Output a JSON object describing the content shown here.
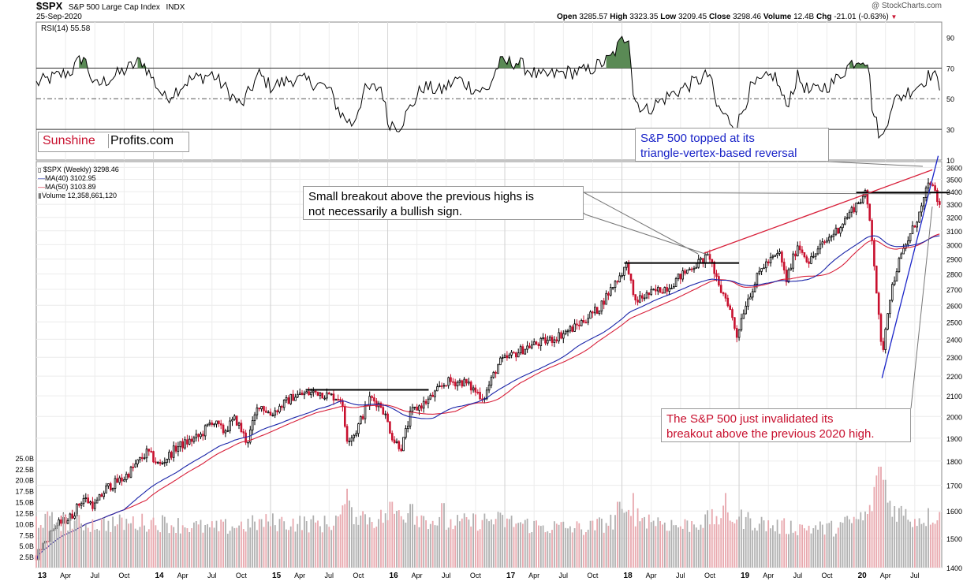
{
  "header": {
    "symbol": "$SPX",
    "index_name": "S&P 500 Large Cap Index",
    "exchange": "INDX",
    "date": "25-Sep-2020",
    "open_label": "Open",
    "open": "3285.57",
    "high_label": "High",
    "high": "3323.35",
    "low_label": "Low",
    "low": "3209.45",
    "close_label": "Close",
    "close": "3298.46",
    "volume_label": "Volume",
    "volume": "12.4B",
    "chg_label": "Chg",
    "chg": "-21.01 (-0.63%)",
    "credit": "@ StockCharts.com"
  },
  "logo": {
    "part1": "Sunshine",
    "part2": "Profits.com"
  },
  "legend": {
    "price": "$SPX (Weekly) 3298.46",
    "ma40": "MA(40) 3102.95",
    "ma50": "MA(50) 3103.89",
    "volume": "Volume 12,358,661,120"
  },
  "annotations": {
    "topped_line1": "S&P 500 topped at its",
    "topped_line2": "triangle-vertex-based reversal",
    "breakout_line1": "Small breakout above the previous highs is",
    "breakout_line2": "not necessarily a bullish sign.",
    "invalidated_line1": "The S&P 500 just invalidated its",
    "invalidated_line2": "breakout above the previous 2020 high."
  },
  "colors": {
    "up": "#000000",
    "down": "#c8102e",
    "ma40": "#1a24a8",
    "ma50": "#d8203a",
    "rsi_fill": "#5a8a55",
    "vol_up": "#b0b0b0",
    "vol_down": "#e8a8ae",
    "blue_text": "#1a24c8",
    "red_text": "#c8102e"
  },
  "chart_data": [
    {
      "type": "line",
      "title": "RSI(14) 55.58",
      "ylim": [
        10,
        100
      ],
      "y_ticks": [
        90,
        70,
        50,
        30,
        10
      ],
      "overbought": 70,
      "oversold": 30,
      "midline": 50,
      "x_start": 2013.0,
      "x_end": 2020.73,
      "points": [
        [
          2013.0,
          60
        ],
        [
          2013.3,
          68
        ],
        [
          2013.4,
          78
        ],
        [
          2013.5,
          58
        ],
        [
          2013.7,
          66
        ],
        [
          2013.9,
          75
        ],
        [
          2014.0,
          62
        ],
        [
          2014.1,
          50
        ],
        [
          2014.3,
          62
        ],
        [
          2014.5,
          66
        ],
        [
          2014.6,
          58
        ],
        [
          2014.75,
          45
        ],
        [
          2014.9,
          66
        ],
        [
          2015.0,
          58
        ],
        [
          2015.2,
          63
        ],
        [
          2015.4,
          60
        ],
        [
          2015.5,
          56
        ],
        [
          2015.6,
          40
        ],
        [
          2015.7,
          33
        ],
        [
          2015.8,
          55
        ],
        [
          2015.95,
          58
        ],
        [
          2016.0,
          35
        ],
        [
          2016.1,
          32
        ],
        [
          2016.3,
          58
        ],
        [
          2016.45,
          55
        ],
        [
          2016.6,
          63
        ],
        [
          2016.75,
          56
        ],
        [
          2016.85,
          55
        ],
        [
          2016.95,
          73
        ],
        [
          2017.1,
          74
        ],
        [
          2017.3,
          64
        ],
        [
          2017.5,
          67
        ],
        [
          2017.7,
          68
        ],
        [
          2017.9,
          76
        ],
        [
          2018.0,
          88
        ],
        [
          2018.06,
          92
        ],
        [
          2018.1,
          50
        ],
        [
          2018.2,
          42
        ],
        [
          2018.4,
          52
        ],
        [
          2018.6,
          60
        ],
        [
          2018.75,
          66
        ],
        [
          2018.8,
          46
        ],
        [
          2018.9,
          37
        ],
        [
          2018.98,
          32
        ],
        [
          2019.1,
          57
        ],
        [
          2019.3,
          66
        ],
        [
          2019.4,
          45
        ],
        [
          2019.5,
          64
        ],
        [
          2019.6,
          54
        ],
        [
          2019.8,
          60
        ],
        [
          2019.95,
          73
        ],
        [
          2020.05,
          77
        ],
        [
          2020.1,
          74
        ],
        [
          2020.14,
          42
        ],
        [
          2020.22,
          22
        ],
        [
          2020.3,
          47
        ],
        [
          2020.45,
          55
        ],
        [
          2020.55,
          60
        ],
        [
          2020.65,
          67
        ],
        [
          2020.73,
          56
        ]
      ],
      "fill_above": [
        [
          2013.35,
          2013.45
        ],
        [
          2013.85,
          2013.95
        ],
        [
          2016.93,
          2017.15
        ],
        [
          2017.85,
          2018.08
        ],
        [
          2019.93,
          2020.1
        ]
      ]
    },
    {
      "type": "candlestick",
      "title": "$SPX (Weekly) 3298.46",
      "x_start": 2013.0,
      "x_end": 2020.73,
      "ylim": [
        1400,
        3650
      ],
      "y_scale": "log",
      "y_ticks": [
        1400,
        1500,
        1600,
        1700,
        1800,
        1900,
        2000,
        2100,
        2200,
        2300,
        2400,
        2500,
        2600,
        2700,
        2800,
        2900,
        3000,
        3100,
        3200,
        3300,
        3400,
        3500,
        3600
      ],
      "x_ticks": [
        {
          "x": 2013.0,
          "label": "13",
          "major": true
        },
        {
          "x": 2013.25,
          "label": "Apr"
        },
        {
          "x": 2013.5,
          "label": "Jul"
        },
        {
          "x": 2013.75,
          "label": "Oct"
        },
        {
          "x": 2014.0,
          "label": "14",
          "major": true
        },
        {
          "x": 2014.25,
          "label": "Apr"
        },
        {
          "x": 2014.5,
          "label": "Jul"
        },
        {
          "x": 2014.75,
          "label": "Oct"
        },
        {
          "x": 2015.0,
          "label": "15",
          "major": true
        },
        {
          "x": 2015.25,
          "label": "Apr"
        },
        {
          "x": 2015.5,
          "label": "Jul"
        },
        {
          "x": 2015.75,
          "label": "Oct"
        },
        {
          "x": 2016.0,
          "label": "16",
          "major": true
        },
        {
          "x": 2016.25,
          "label": "Apr"
        },
        {
          "x": 2016.5,
          "label": "Jul"
        },
        {
          "x": 2016.75,
          "label": "Oct"
        },
        {
          "x": 2017.0,
          "label": "17",
          "major": true
        },
        {
          "x": 2017.25,
          "label": "Apr"
        },
        {
          "x": 2017.5,
          "label": "Jul"
        },
        {
          "x": 2017.75,
          "label": "Oct"
        },
        {
          "x": 2018.0,
          "label": "18",
          "major": true
        },
        {
          "x": 2018.25,
          "label": "Apr"
        },
        {
          "x": 2018.5,
          "label": "Jul"
        },
        {
          "x": 2018.75,
          "label": "Oct"
        },
        {
          "x": 2019.0,
          "label": "19",
          "major": true
        },
        {
          "x": 2019.25,
          "label": "Apr"
        },
        {
          "x": 2019.5,
          "label": "Jul"
        },
        {
          "x": 2019.75,
          "label": "Oct"
        },
        {
          "x": 2020.0,
          "label": "20",
          "major": true
        },
        {
          "x": 2020.25,
          "label": "Apr"
        },
        {
          "x": 2020.5,
          "label": "Jul"
        }
      ],
      "close_path": [
        [
          2013.0,
          1440
        ],
        [
          2013.15,
          1540
        ],
        [
          2013.3,
          1580
        ],
        [
          2013.4,
          1650
        ],
        [
          2013.5,
          1620
        ],
        [
          2013.6,
          1690
        ],
        [
          2013.75,
          1730
        ],
        [
          2013.95,
          1840
        ],
        [
          2014.05,
          1780
        ],
        [
          2014.2,
          1860
        ],
        [
          2014.4,
          1910
        ],
        [
          2014.5,
          1980
        ],
        [
          2014.6,
          1930
        ],
        [
          2014.7,
          1990
        ],
        [
          2014.8,
          1880
        ],
        [
          2014.9,
          2060
        ],
        [
          2015.0,
          2010
        ],
        [
          2015.2,
          2100
        ],
        [
          2015.4,
          2120
        ],
        [
          2015.5,
          2100
        ],
        [
          2015.6,
          2090
        ],
        [
          2015.65,
          1900
        ],
        [
          2015.72,
          1920
        ],
        [
          2015.85,
          2090
        ],
        [
          2015.95,
          2050
        ],
        [
          2016.05,
          1890
        ],
        [
          2016.12,
          1860
        ],
        [
          2016.2,
          2020
        ],
        [
          2016.35,
          2080
        ],
        [
          2016.5,
          2170
        ],
        [
          2016.65,
          2170
        ],
        [
          2016.82,
          2090
        ],
        [
          2016.95,
          2270
        ],
        [
          2017.2,
          2360
        ],
        [
          2017.4,
          2400
        ],
        [
          2017.6,
          2470
        ],
        [
          2017.8,
          2580
        ],
        [
          2018.05,
          2870
        ],
        [
          2018.1,
          2620
        ],
        [
          2018.2,
          2660
        ],
        [
          2018.4,
          2720
        ],
        [
          2018.6,
          2850
        ],
        [
          2018.75,
          2920
        ],
        [
          2018.82,
          2720
        ],
        [
          2018.9,
          2630
        ],
        [
          2018.98,
          2420
        ],
        [
          2019.05,
          2600
        ],
        [
          2019.2,
          2850
        ],
        [
          2019.35,
          2940
        ],
        [
          2019.4,
          2750
        ],
        [
          2019.5,
          3000
        ],
        [
          2019.6,
          2880
        ],
        [
          2019.7,
          2990
        ],
        [
          2019.85,
          3120
        ],
        [
          2020.0,
          3300
        ],
        [
          2020.08,
          3380
        ],
        [
          2020.13,
          3100
        ],
        [
          2020.18,
          2620
        ],
        [
          2020.22,
          2300
        ],
        [
          2020.28,
          2630
        ],
        [
          2020.35,
          2850
        ],
        [
          2020.45,
          3050
        ],
        [
          2020.55,
          3250
        ],
        [
          2020.63,
          3500
        ],
        [
          2020.66,
          3400
        ],
        [
          2020.7,
          3320
        ],
        [
          2020.73,
          3298
        ]
      ],
      "annotations": [
        {
          "kind": "hline",
          "y": 2130,
          "x1": 2015.3,
          "x2": 2016.35,
          "color": "#000"
        },
        {
          "kind": "hline",
          "y": 2873,
          "x1": 2018.02,
          "x2": 2019.0,
          "color": "#000"
        },
        {
          "kind": "hline",
          "y": 3393,
          "x1": 2020.0,
          "x2": 2020.8,
          "color": "#000"
        },
        {
          "kind": "trend",
          "p1": [
            2018.7,
            2940
          ],
          "p2": [
            2020.65,
            3580
          ],
          "color": "#d8203a"
        },
        {
          "kind": "trend",
          "p1": [
            2020.22,
            2190
          ],
          "p2": [
            2020.7,
            3700
          ],
          "color": "#1a24c8"
        }
      ]
    },
    {
      "type": "bar",
      "title": "Volume",
      "ylim": [
        0,
        27.5
      ],
      "y_ticks": [
        "2.5B",
        "5.0B",
        "7.5B",
        "10.0B",
        "12.5B",
        "15.0B",
        "17.5B",
        "20.0B",
        "22.5B",
        "25.0B"
      ],
      "y_tick_values": [
        2.5,
        5,
        7.5,
        10,
        12.5,
        15,
        17.5,
        20,
        22.5,
        25
      ],
      "x_start": 2013.0,
      "x_end": 2020.73,
      "level_path": [
        [
          2013.0,
          11
        ],
        [
          2013.5,
          10
        ],
        [
          2014.0,
          10.5
        ],
        [
          2014.5,
          9
        ],
        [
          2015.0,
          10.5
        ],
        [
          2015.5,
          10
        ],
        [
          2015.65,
          13
        ],
        [
          2015.9,
          11
        ],
        [
          2016.1,
          13
        ],
        [
          2016.5,
          10
        ],
        [
          2016.9,
          11
        ],
        [
          2017.3,
          9.5
        ],
        [
          2017.7,
          9
        ],
        [
          2018.1,
          12
        ],
        [
          2018.5,
          9.5
        ],
        [
          2018.9,
          12
        ],
        [
          2019.3,
          9.5
        ],
        [
          2019.8,
          9
        ],
        [
          2020.1,
          12
        ],
        [
          2020.2,
          20
        ],
        [
          2020.3,
          14
        ],
        [
          2020.5,
          11
        ],
        [
          2020.73,
          12.4
        ]
      ],
      "spikes": [
        [
          2015.65,
          18
        ],
        [
          2016.03,
          15
        ],
        [
          2016.2,
          14.5
        ],
        [
          2016.47,
          14.7
        ],
        [
          2017.97,
          15
        ],
        [
          2018.1,
          17
        ],
        [
          2018.88,
          17
        ],
        [
          2020.17,
          21
        ],
        [
          2020.2,
          23
        ],
        [
          2020.24,
          20
        ]
      ]
    }
  ]
}
